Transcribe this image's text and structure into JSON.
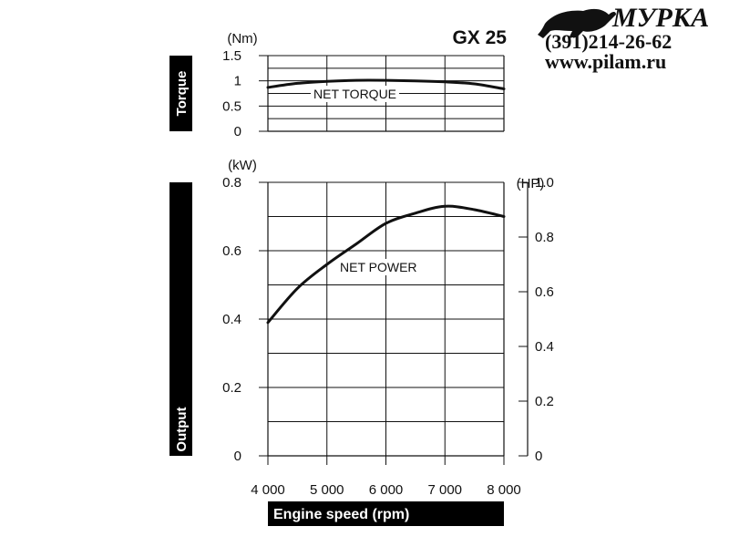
{
  "watermark": {
    "name": "МУРКА",
    "phone": "(391)214-26-62",
    "url": "www.pilam.ru",
    "logo_icon": "black-cat-icon"
  },
  "chart_data": [
    {
      "type": "line",
      "title": "GX 25",
      "side_label": "Torque",
      "ylabel_unit": "(Nm)",
      "xlim": [
        4000,
        8000
      ],
      "ylim": [
        0,
        1.5
      ],
      "y_ticks": [
        "0",
        "0.5",
        "1",
        "1.5"
      ],
      "y_tick_values": [
        0,
        0.5,
        1,
        1.5
      ],
      "series": [
        {
          "name": "NET TORQUE",
          "x": [
            4000,
            4500,
            5000,
            5500,
            6000,
            6500,
            7000,
            7500,
            8000
          ],
          "y": [
            0.87,
            0.95,
            0.99,
            1.01,
            1.01,
            1.0,
            0.98,
            0.94,
            0.84
          ]
        }
      ]
    },
    {
      "type": "line",
      "side_label": "Output",
      "ylabel_unit": "(kW)",
      "ylabel_right_unit": "(HP)",
      "xlabel": "Engine speed (rpm)",
      "xlim": [
        4000,
        8000
      ],
      "ylim": [
        0,
        0.8
      ],
      "y2lim": [
        0,
        1.0
      ],
      "x_ticks": [
        "4 000",
        "5 000",
        "6 000",
        "7 000",
        "8 000"
      ],
      "x_tick_values": [
        4000,
        5000,
        6000,
        7000,
        8000
      ],
      "y_ticks": [
        "0",
        "0.2",
        "0.4",
        "0.6",
        "0.8"
      ],
      "y_tick_values": [
        0,
        0.2,
        0.4,
        0.6,
        0.8
      ],
      "y2_ticks": [
        "0",
        "0.2",
        "0.4",
        "0.6",
        "0.8",
        "1.0"
      ],
      "y2_tick_values": [
        0,
        0.2,
        0.4,
        0.6,
        0.8,
        1.0
      ],
      "series": [
        {
          "name": "NET POWER",
          "x": [
            4000,
            4500,
            5000,
            5500,
            6000,
            6500,
            7000,
            7500,
            8000
          ],
          "y": [
            0.39,
            0.49,
            0.56,
            0.62,
            0.68,
            0.71,
            0.73,
            0.72,
            0.7
          ]
        }
      ]
    }
  ]
}
